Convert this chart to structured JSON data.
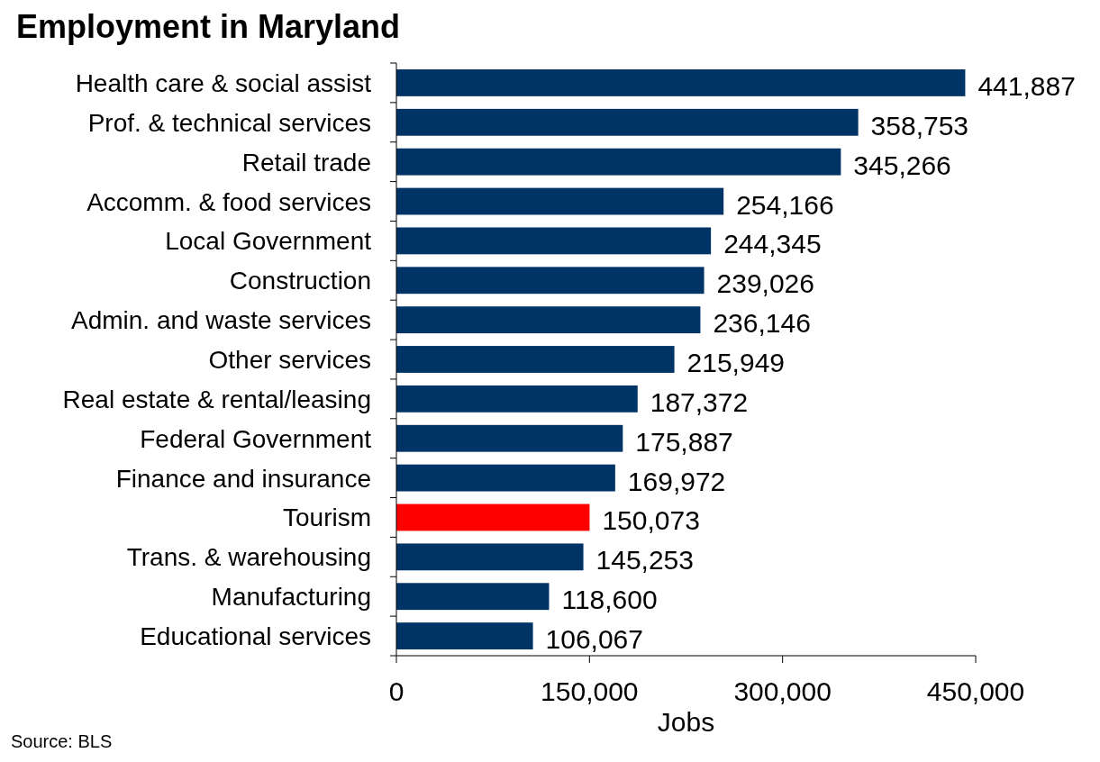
{
  "chart_data": {
    "type": "bar",
    "orientation": "horizontal",
    "title": "Employment in Maryland",
    "xlabel": "Jobs",
    "categories": [
      "Health care & social assist",
      "Prof. & technical services",
      "Retail trade",
      "Accomm. & food services",
      "Local Government",
      "Construction",
      "Admin. and waste services",
      "Other services",
      "Real estate & rental/leasing",
      "Federal Government",
      "Finance and insurance",
      "Tourism",
      "Trans. & warehousing",
      "Manufacturing",
      "Educational services"
    ],
    "values": [
      441887,
      358753,
      345266,
      254166,
      244345,
      239026,
      236146,
      215949,
      187372,
      175887,
      169972,
      150073,
      145253,
      118600,
      106067
    ],
    "colors": [
      "#003366",
      "#003366",
      "#003366",
      "#003366",
      "#003366",
      "#003366",
      "#003366",
      "#003366",
      "#003366",
      "#003366",
      "#003366",
      "#ff0000",
      "#003366",
      "#003366",
      "#003366"
    ],
    "value_labels": [
      "441,887",
      "358,753",
      "345,266",
      "254,166",
      "244,345",
      "239,026",
      "236,146",
      "215,949",
      "187,372",
      "175,887",
      "169,972",
      "150,073",
      "145,253",
      "118,600",
      "106,067"
    ],
    "xlim": [
      0,
      450000
    ],
    "xticks": [
      0,
      {
        "value": 150000,
        "label": "150,000"
      },
      {
        "value": 300000,
        "label": "300,000"
      },
      {
        "value": 450000,
        "label": "450,000"
      }
    ],
    "grid": false,
    "annotations": [
      "Source: BLS"
    ]
  }
}
